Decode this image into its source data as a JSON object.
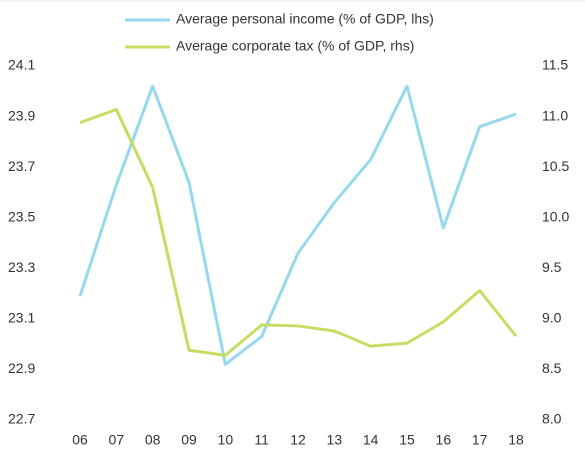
{
  "chart_data": {
    "type": "line",
    "categories": [
      "06",
      "07",
      "08",
      "09",
      "10",
      "11",
      "12",
      "13",
      "14",
      "15",
      "16",
      "17",
      "18"
    ],
    "series": [
      {
        "name": "Average personal income (% of GDP, lhs)",
        "color": "#96d8ee",
        "values": [
          23.19,
          23.63,
          24.02,
          23.64,
          22.92,
          23.03,
          23.36,
          23.56,
          23.73,
          24.02,
          23.46,
          23.86,
          23.91
        ]
      },
      {
        "name": "Average corporate tax (% of GDP, rhs)",
        "color": "#c5dd62",
        "axis": "y2",
        "values": [
          10.94,
          11.07,
          10.3,
          8.69,
          8.64,
          8.94,
          8.93,
          8.88,
          8.73,
          8.76,
          8.97,
          9.28,
          8.83
        ]
      }
    ],
    "ylim": [
      22.7,
      24.1
    ],
    "yticks": [
      22.7,
      22.9,
      23.1,
      23.3,
      23.5,
      23.7,
      23.9,
      24.1
    ],
    "y2lim": [
      8,
      11.5
    ],
    "y2ticks": [
      {
        "value": 8,
        "label": "8.0"
      },
      8.5,
      {
        "value": 9,
        "label": "9.0"
      },
      9.5,
      {
        "value": 10,
        "label": "10.0"
      },
      10.5,
      {
        "value": 11,
        "label": "11.0"
      },
      11.5
    ]
  }
}
